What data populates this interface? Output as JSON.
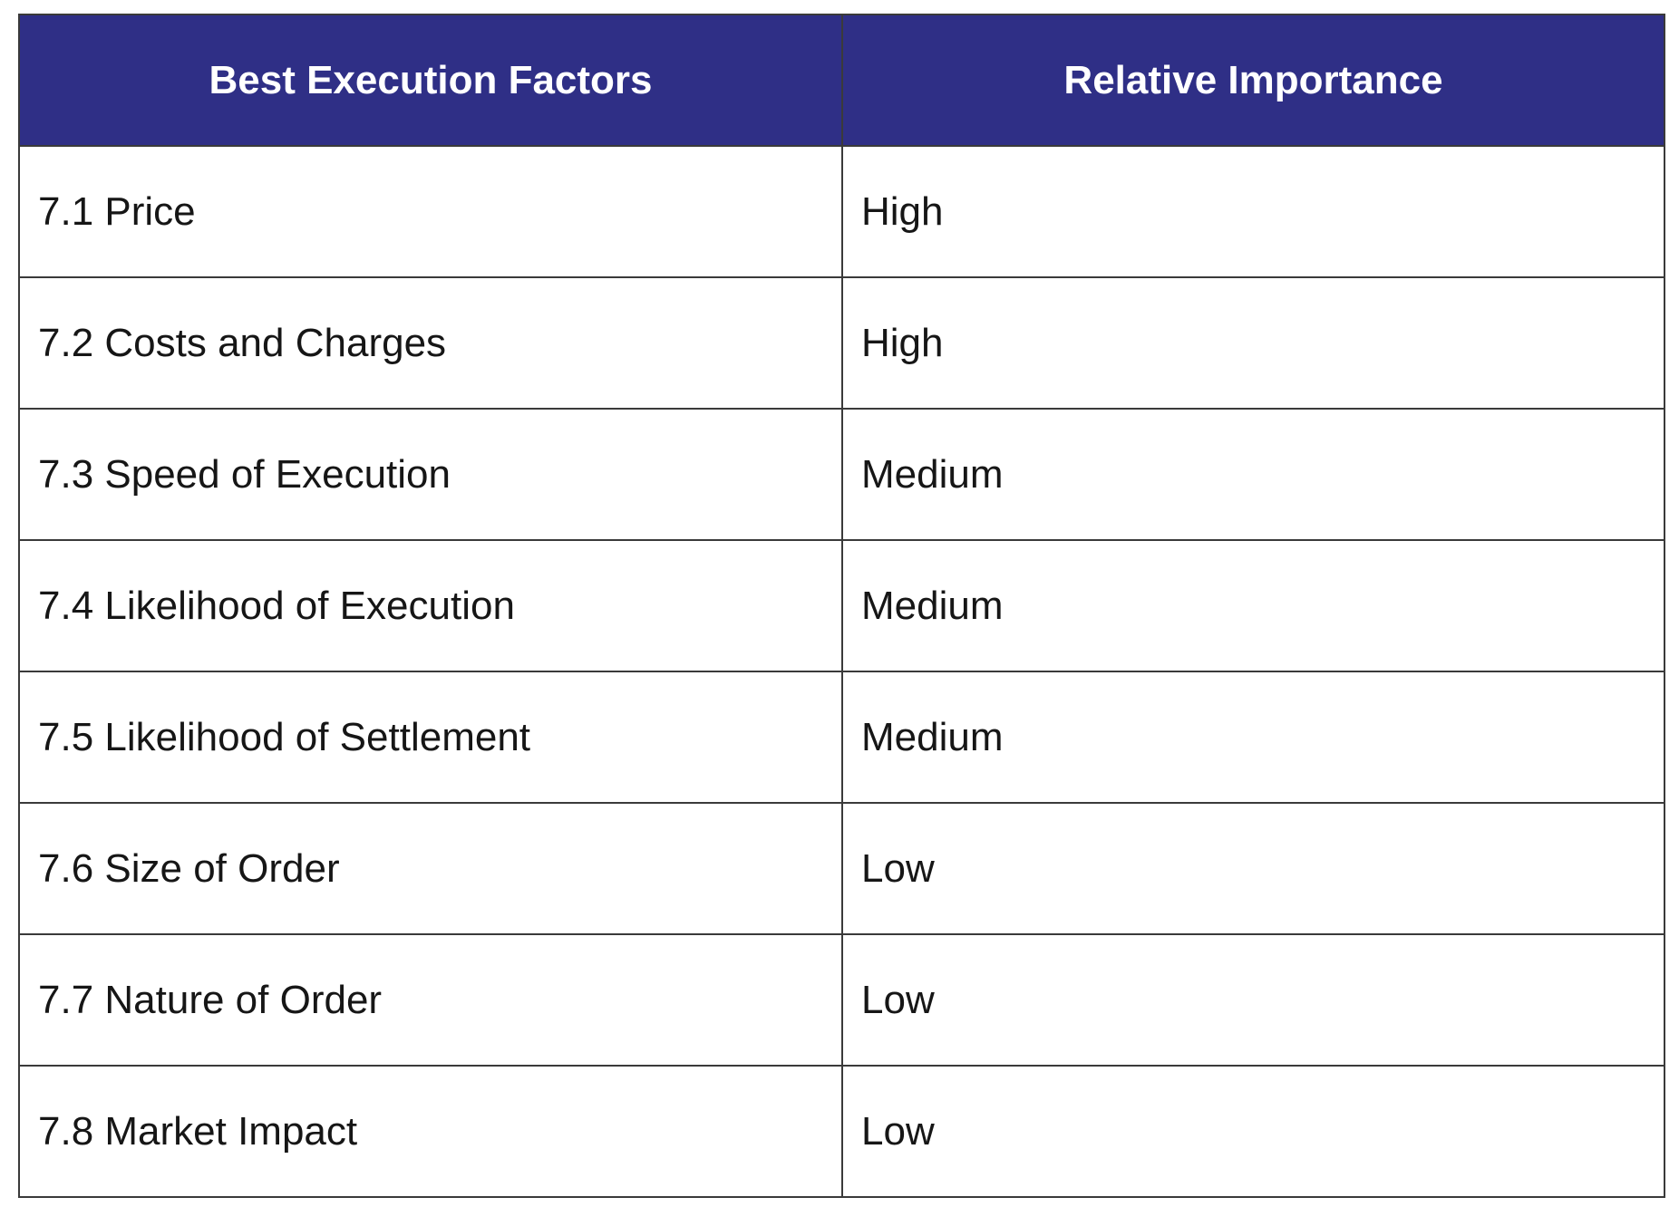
{
  "table": {
    "header_bg": "#2f2f86",
    "columns": [
      "Best Execution Factors",
      "Relative Importance"
    ],
    "rows": [
      [
        "7.1 Price",
        "High"
      ],
      [
        "7.2 Costs and Charges",
        "High"
      ],
      [
        "7.3 Speed of Execution",
        "Medium"
      ],
      [
        "7.4 Likelihood of Execution",
        "Medium"
      ],
      [
        "7.5 Likelihood of Settlement",
        "Medium"
      ],
      [
        "7.6 Size of Order",
        "Low"
      ],
      [
        "7.7 Nature of Order",
        "Low"
      ],
      [
        "7.8 Market Impact",
        "Low"
      ]
    ]
  }
}
